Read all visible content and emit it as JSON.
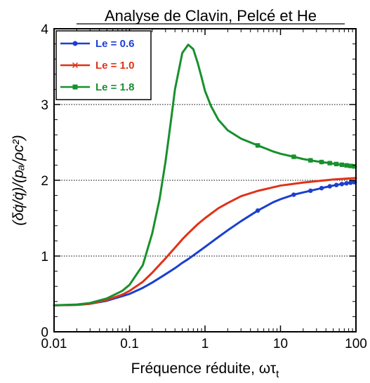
{
  "chart_data": {
    "type": "line",
    "title": "Analyse de Clavin, Pelcé et He",
    "xlabel": "Fréquence réduite, ωτ",
    "xlabel_subscript": "t",
    "ylabel": "(δq̇/q̇)/(pₐ/ρc²)",
    "xscale": "log",
    "xlim": [
      0.01,
      100
    ],
    "ylim": [
      0,
      4
    ],
    "x_ticks": [
      {
        "value": 0.01,
        "label": "0.01"
      },
      {
        "value": 0.1,
        "label": "0.1"
      },
      {
        "value": 1,
        "label": "1"
      },
      {
        "value": 10,
        "label": "10"
      },
      {
        "value": 100,
        "label": "100"
      }
    ],
    "y_ticks": [
      {
        "value": 0,
        "label": "0"
      },
      {
        "value": 1,
        "label": "1"
      },
      {
        "value": 2,
        "label": "2"
      },
      {
        "value": 3,
        "label": "3"
      },
      {
        "value": 4,
        "label": "4"
      }
    ],
    "grid": "dotted horizontal lines at y = 1, 2, 3",
    "legend_position": "top-left",
    "series": [
      {
        "name": "Le = 0.6",
        "color": "#1b3fd0",
        "marker": "circle",
        "x": [
          0.01,
          0.02,
          0.03,
          0.05,
          0.08,
          0.1,
          0.15,
          0.2,
          0.3,
          0.4,
          0.5,
          0.6,
          0.8,
          1,
          1.5,
          2,
          3,
          5,
          8,
          10,
          15,
          20,
          30,
          40,
          50,
          60,
          70,
          80,
          90,
          100
        ],
        "y": [
          0.35,
          0.355,
          0.37,
          0.41,
          0.47,
          0.5,
          0.58,
          0.65,
          0.76,
          0.84,
          0.91,
          0.96,
          1.05,
          1.12,
          1.25,
          1.34,
          1.46,
          1.6,
          1.71,
          1.75,
          1.81,
          1.84,
          1.88,
          1.91,
          1.93,
          1.945,
          1.955,
          1.965,
          1.97,
          1.98
        ],
        "marker_x": [
          5,
          15,
          25,
          35,
          45,
          55,
          65,
          75,
          85,
          95
        ]
      },
      {
        "name": "Le = 1.0",
        "color": "#e03216",
        "marker": "x",
        "x": [
          0.01,
          0.02,
          0.03,
          0.05,
          0.08,
          0.1,
          0.15,
          0.2,
          0.3,
          0.4,
          0.5,
          0.6,
          0.8,
          1,
          1.5,
          2,
          3,
          5,
          10,
          20,
          50,
          100
        ],
        "y": [
          0.35,
          0.355,
          0.37,
          0.42,
          0.49,
          0.54,
          0.66,
          0.78,
          0.97,
          1.11,
          1.22,
          1.3,
          1.42,
          1.5,
          1.63,
          1.7,
          1.79,
          1.86,
          1.93,
          1.97,
          2.01,
          2.03
        ],
        "marker_x": []
      },
      {
        "name": "Le = 1.8",
        "color": "#18902d",
        "marker": "square",
        "x": [
          0.01,
          0.02,
          0.03,
          0.05,
          0.08,
          0.1,
          0.15,
          0.2,
          0.25,
          0.3,
          0.35,
          0.4,
          0.5,
          0.6,
          0.7,
          0.8,
          0.9,
          1,
          1.2,
          1.5,
          2,
          3,
          5,
          8,
          10,
          15,
          20,
          30,
          50,
          100
        ],
        "y": [
          0.35,
          0.36,
          0.38,
          0.44,
          0.54,
          0.62,
          0.88,
          1.3,
          1.75,
          2.25,
          2.75,
          3.2,
          3.68,
          3.79,
          3.73,
          3.55,
          3.36,
          3.18,
          2.98,
          2.8,
          2.66,
          2.55,
          2.46,
          2.38,
          2.35,
          2.31,
          2.28,
          2.25,
          2.22,
          2.18
        ],
        "marker_x": [
          5,
          15,
          25,
          35,
          45,
          55,
          65,
          75,
          85,
          95
        ]
      }
    ]
  }
}
